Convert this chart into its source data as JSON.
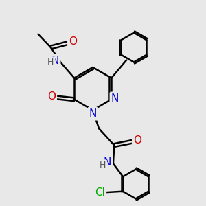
{
  "background_color": "#e8e8e8",
  "atom_colors": {
    "C": "#000000",
    "N": "#0000cc",
    "O": "#cc0000",
    "H": "#555555",
    "Cl": "#00aa00"
  },
  "bond_color": "#000000",
  "bond_width": 1.8,
  "font_size": 10,
  "figsize": [
    3.0,
    3.0
  ],
  "dpi": 100
}
